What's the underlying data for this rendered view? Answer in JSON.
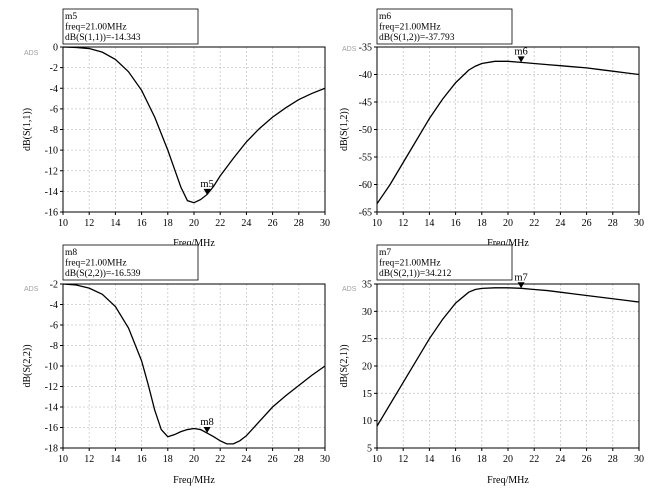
{
  "chart_data": [
    {
      "type": "line",
      "watermark": "ADS",
      "xlabel": "Freq/MHz",
      "ylabel": "dB(S(1,1))",
      "xlim": [
        10,
        30
      ],
      "ylim": [
        -16,
        0
      ],
      "xticks": [
        "10",
        "12",
        "14",
        "16",
        "18",
        "20",
        "22",
        "24",
        "26",
        "28",
        "30"
      ],
      "yticks": [
        "0",
        "-2",
        "-4",
        "-6",
        "-8",
        "-10",
        "-12",
        "-14",
        "-16"
      ],
      "grid": true,
      "series": [
        {
          "x": [
            10,
            11,
            12,
            13,
            14,
            15,
            16,
            17,
            18,
            18.5,
            19,
            19.5,
            20,
            20.5,
            21,
            21.5,
            22,
            23,
            24,
            25,
            26,
            27,
            28,
            29,
            30
          ],
          "y": [
            0,
            -0.05,
            -0.15,
            -0.5,
            -1.2,
            -2.4,
            -4.2,
            -6.8,
            -10.0,
            -11.8,
            -13.6,
            -14.9,
            -15.1,
            -14.8,
            -14.3,
            -13.5,
            -12.5,
            -10.8,
            -9.2,
            -7.9,
            -6.8,
            -5.9,
            -5.1,
            -4.5,
            -4.0
          ]
        }
      ],
      "marker": {
        "name": "m5",
        "x": 21,
        "y": -14.343,
        "lines": [
          "m5",
          "freq=21.00MHz",
          "dB(S(1,1))=-14.343"
        ]
      }
    },
    {
      "type": "line",
      "watermark": "ADS",
      "xlabel": "Freq/MHz",
      "ylabel": "dB(S(1,2))",
      "xlim": [
        10,
        30
      ],
      "ylim": [
        -65,
        -35
      ],
      "xticks": [
        "10",
        "12",
        "14",
        "16",
        "18",
        "20",
        "22",
        "24",
        "26",
        "28",
        "30"
      ],
      "yticks": [
        "-35",
        "-40",
        "-45",
        "-50",
        "-55",
        "-60",
        "-65"
      ],
      "grid": true,
      "series": [
        {
          "x": [
            10,
            11,
            12,
            13,
            14,
            15,
            16,
            17,
            17.5,
            18,
            19,
            20,
            21,
            22,
            23,
            24,
            25,
            26,
            27,
            28,
            29,
            30
          ],
          "y": [
            -63.5,
            -60.0,
            -56.0,
            -52.0,
            -48.0,
            -44.5,
            -41.5,
            -39.2,
            -38.5,
            -38.0,
            -37.6,
            -37.6,
            -37.793,
            -38.0,
            -38.2,
            -38.4,
            -38.6,
            -38.8,
            -39.1,
            -39.4,
            -39.7,
            -40.0
          ]
        }
      ],
      "marker": {
        "name": "m6",
        "x": 21,
        "y": -37.793,
        "lines": [
          "m6",
          "freq=21.00MHz",
          "dB(S(1,2))=-37.793"
        ]
      }
    },
    {
      "type": "line",
      "watermark": "ADS",
      "xlabel": "Freq/MHz",
      "ylabel": "dB(S(2,2))",
      "xlim": [
        10,
        30
      ],
      "ylim": [
        -18,
        -2
      ],
      "xticks": [
        "10",
        "12",
        "14",
        "16",
        "18",
        "20",
        "22",
        "24",
        "26",
        "28",
        "30"
      ],
      "yticks": [
        "-2",
        "-4",
        "-6",
        "-8",
        "-10",
        "-12",
        "-14",
        "-16",
        "-18"
      ],
      "grid": true,
      "series": [
        {
          "x": [
            10,
            11,
            12,
            13,
            14,
            15,
            16,
            16.5,
            17,
            17.5,
            18,
            18.5,
            19,
            19.5,
            20,
            20.5,
            21,
            21.5,
            22,
            22.5,
            23,
            23.5,
            24,
            25,
            26,
            27,
            28,
            29,
            30
          ],
          "y": [
            -2.0,
            -2.1,
            -2.4,
            -3.0,
            -4.2,
            -6.3,
            -9.5,
            -11.8,
            -14.3,
            -16.2,
            -16.9,
            -16.7,
            -16.4,
            -16.2,
            -16.1,
            -16.2,
            -16.539,
            -16.9,
            -17.3,
            -17.6,
            -17.6,
            -17.3,
            -16.8,
            -15.4,
            -14.0,
            -12.9,
            -11.9,
            -10.9,
            -10.0
          ]
        }
      ],
      "marker": {
        "name": "m8",
        "x": 21,
        "y": -16.539,
        "lines": [
          "m8",
          "freq=21.00MHz",
          "dB(S(2,2))=-16.539"
        ]
      }
    },
    {
      "type": "line",
      "watermark": "ADS",
      "xlabel": "Freq/MHz",
      "ylabel": "dB(S(2,1))",
      "xlim": [
        10,
        30
      ],
      "ylim": [
        5,
        35
      ],
      "xticks": [
        "10",
        "12",
        "14",
        "16",
        "18",
        "20",
        "22",
        "24",
        "26",
        "28",
        "30"
      ],
      "yticks": [
        "35",
        "30",
        "25",
        "20",
        "15",
        "10",
        "5"
      ],
      "grid": true,
      "series": [
        {
          "x": [
            10,
            11,
            12,
            13,
            14,
            15,
            16,
            17,
            17.5,
            18,
            19,
            20,
            21,
            22,
            23,
            24,
            25,
            26,
            27,
            28,
            29,
            30
          ],
          "y": [
            9.0,
            13.0,
            17.0,
            21.0,
            25.0,
            28.5,
            31.5,
            33.5,
            34.0,
            34.2,
            34.3,
            34.3,
            34.212,
            34.0,
            33.8,
            33.5,
            33.2,
            32.9,
            32.6,
            32.3,
            32.0,
            31.7
          ]
        }
      ],
      "marker": {
        "name": "m7",
        "x": 21,
        "y": 34.212,
        "lines": [
          "m7",
          "freq=21.00MHz",
          "dB(S(2,1))=34.212"
        ]
      }
    }
  ]
}
